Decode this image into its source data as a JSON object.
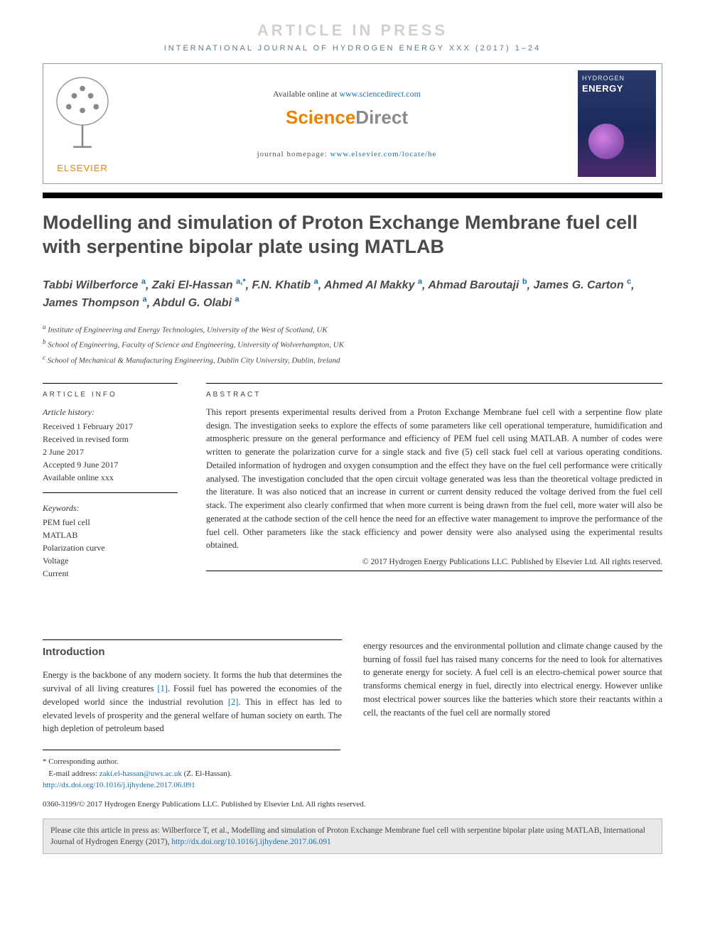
{
  "banner": "ARTICLE IN PRESS",
  "journal_header": "INTERNATIONAL JOURNAL OF HYDROGEN ENERGY XXX (2017) 1–24",
  "available_prefix": "Available online at ",
  "available_url": "www.sciencedirect.com",
  "sd_part1": "Science",
  "sd_part2": "Direct",
  "homepage_prefix": "journal homepage: ",
  "homepage_url": "www.elsevier.com/locate/he",
  "elsevier_word": "ELSEVIER",
  "cover": {
    "line1": "HYDROGEN",
    "line2": "ENERGY"
  },
  "title": "Modelling and simulation of Proton Exchange Membrane fuel cell with serpentine bipolar plate using MATLAB",
  "authors": [
    {
      "name": "Tabbi Wilberforce",
      "aff": "a"
    },
    {
      "name": "Zaki El-Hassan",
      "aff": "a,*"
    },
    {
      "name": "F.N. Khatib",
      "aff": "a"
    },
    {
      "name": "Ahmed Al Makky",
      "aff": "a"
    },
    {
      "name": "Ahmad Baroutaji",
      "aff": "b"
    },
    {
      "name": "James G. Carton",
      "aff": "c"
    },
    {
      "name": "James Thompson",
      "aff": "a"
    },
    {
      "name": "Abdul G. Olabi",
      "aff": "a"
    }
  ],
  "affiliations": [
    {
      "sup": "a",
      "text": "Institute of Engineering and Energy Technologies, University of the West of Scotland, UK"
    },
    {
      "sup": "b",
      "text": "School of Engineering, Faculty of Science and Engineering, University of Wolverhampton, UK"
    },
    {
      "sup": "c",
      "text": "School of Mechanical & Manufacturing Engineering, Dublin City University, Dublin, Ireland"
    }
  ],
  "info_heading": "ARTICLE INFO",
  "abstract_heading": "ABSTRACT",
  "history_label": "Article history:",
  "history": [
    "Received 1 February 2017",
    "Received in revised form",
    "2 June 2017",
    "Accepted 9 June 2017",
    "Available online xxx"
  ],
  "keywords_label": "Keywords:",
  "keywords": [
    "PEM fuel cell",
    "MATLAB",
    "Polarization curve",
    "Voltage",
    "Current"
  ],
  "abstract": "This report presents experimental results derived from a Proton Exchange Membrane fuel cell with a serpentine flow plate design. The investigation seeks to explore the effects of some parameters like cell operational temperature, humidification and atmospheric pressure on the general performance and efficiency of PEM fuel cell using MATLAB. A number of codes were written to generate the polarization curve for a single stack and five (5) cell stack fuel cell at various operating conditions. Detailed information of hydrogen and oxygen consumption and the effect they have on the fuel cell performance were critically analysed. The investigation concluded that the open circuit voltage generated was less than the theoretical voltage predicted in the literature. It was also noticed that an increase in current or current density reduced the voltage derived from the fuel cell stack. The experiment also clearly confirmed that when more current is being drawn from the fuel cell, more water will also be generated at the cathode section of the cell hence the need for an effective water management to improve the performance of the fuel cell. Other parameters like the stack efficiency and power density were also analysed using the experimental results obtained.",
  "abstract_copyright": "© 2017 Hydrogen Energy Publications LLC. Published by Elsevier Ltd. All rights reserved.",
  "section_intro": "Introduction",
  "intro_col1_pre": "Energy is the backbone of any modern society. It forms the hub that determines the survival of all living creatures ",
  "intro_ref1": "[1]",
  "intro_col1_mid": ". Fossil fuel has powered the economies of the developed world since the industrial revolution ",
  "intro_ref2": "[2]",
  "intro_col1_post": ". This in effect has led to elevated levels of prosperity and the general welfare of human society on earth. The high depletion of petroleum based",
  "intro_col2": "energy resources and the environmental pollution and climate change caused by the burning of fossil fuel has raised many concerns for the need to look for alternatives to generate energy for society. A fuel cell is an electro-chemical power source that transforms chemical energy in fuel, directly into electrical energy. However unlike most electrical power sources like the batteries which store their reactants within a cell, the reactants of the fuel cell are normally stored",
  "corr_label": "* Corresponding author.",
  "email_label": "E-mail address: ",
  "email": "zaki.el-hassan@uws.ac.uk",
  "email_suffix": " (Z. El-Hassan).",
  "doi": "http://dx.doi.org/10.1016/j.ijhydene.2017.06.091",
  "issn_line": "0360-3199/© 2017 Hydrogen Energy Publications LLC. Published by Elsevier Ltd. All rights reserved.",
  "cite_text_pre": "Please cite this article in press as: Wilberforce T, et al., Modelling and simulation of Proton Exchange Membrane fuel cell with serpentine bipolar plate using MATLAB, International Journal of Hydrogen Energy (2017), ",
  "cite_doi": "http://dx.doi.org/10.1016/j.ijhydene.2017.06.091",
  "colors": {
    "elsevier_orange": "#e98300",
    "link_blue": "#1a6faa",
    "header_gray": "#5a7a8a",
    "text": "#333333",
    "heading_gray": "#4a4a4a",
    "banner_gray": "#d0d0d0",
    "cite_bg": "#e8e8e8"
  }
}
